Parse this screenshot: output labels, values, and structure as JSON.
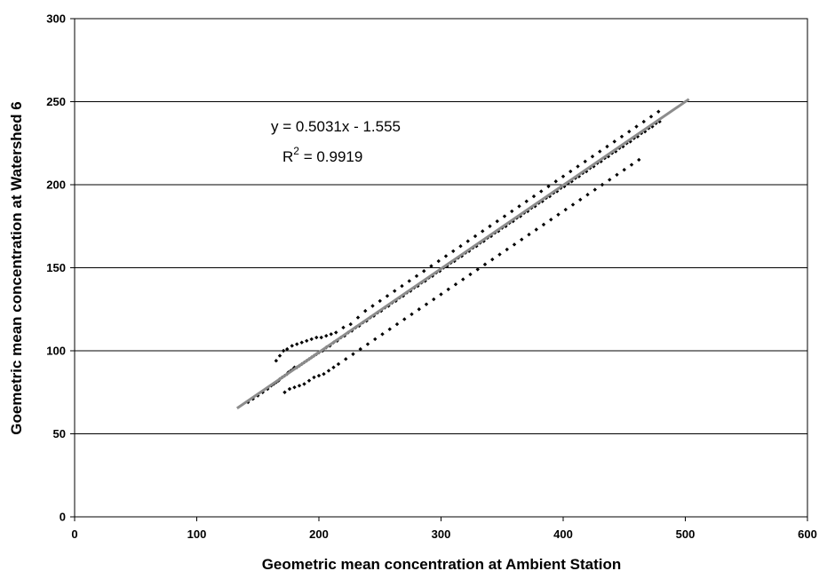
{
  "chart_data": {
    "type": "scatter",
    "xlabel": "Geometric mean concentration at Ambient Station",
    "ylabel": "Goemetric mean concentration at Watershed 6",
    "xlim": [
      0,
      600
    ],
    "ylim": [
      0,
      300
    ],
    "x_ticks": [
      "0",
      "100",
      "200",
      "300",
      "400",
      "500",
      "600"
    ],
    "y_ticks": [
      "0",
      "50",
      "100",
      "150",
      "200",
      "250",
      "300"
    ],
    "grid": {
      "horizontal": true,
      "vertical": false
    },
    "legend": "none",
    "colors": {
      "points": "#000000",
      "trendline": "#8c8c8c",
      "gridlines": "#000000"
    },
    "series": [
      {
        "x": [
          142,
          146,
          150,
          154,
          158,
          161,
          163,
          165,
          167,
          168,
          170,
          172,
          174,
          175,
          177,
          179,
          180,
          182,
          184,
          186,
          188,
          190,
          192,
          194,
          196,
          198,
          200,
          203,
          206,
          209,
          212,
          215,
          218,
          221,
          224,
          227,
          230,
          233,
          236,
          239,
          242,
          245,
          248,
          251,
          254,
          257,
          260,
          263,
          266,
          269,
          272,
          275,
          278,
          281,
          284,
          287,
          290,
          293,
          296,
          299,
          302,
          305,
          308,
          311,
          314,
          317,
          320,
          323,
          326,
          329,
          332,
          335,
          338,
          341,
          344,
          347,
          350,
          353,
          356,
          359,
          362,
          365,
          368,
          371,
          374,
          377,
          380,
          383,
          386,
          389,
          392,
          395,
          398,
          401,
          404,
          407,
          410,
          413,
          416,
          419,
          422,
          425,
          428,
          431,
          434,
          437,
          440,
          443,
          446,
          449,
          452,
          455,
          458,
          461,
          464,
          467,
          470,
          473,
          476,
          479,
          165,
          168,
          171,
          174,
          178,
          182,
          186,
          190,
          194,
          198,
          202,
          206,
          210,
          214,
          220,
          226,
          232,
          238,
          244,
          250,
          256,
          262,
          268,
          274,
          280,
          286,
          292,
          298,
          304,
          310,
          316,
          322,
          328,
          334,
          340,
          346,
          352,
          358,
          364,
          370,
          376,
          382,
          388,
          394,
          400,
          406,
          412,
          418,
          424,
          430,
          436,
          442,
          448,
          454,
          460,
          466,
          472,
          478,
          172,
          176,
          180,
          184,
          188,
          192,
          196,
          200,
          204,
          208,
          212,
          216,
          222,
          228,
          234,
          240,
          246,
          252,
          258,
          264,
          270,
          276,
          282,
          288,
          294,
          300,
          306,
          312,
          318,
          324,
          330,
          336,
          342,
          348,
          354,
          360,
          366,
          372,
          378,
          384,
          390,
          396,
          402,
          408,
          414,
          420,
          426,
          432,
          438,
          444,
          450,
          456,
          462
        ],
        "y": [
          69,
          71,
          73,
          75,
          77,
          79,
          80,
          81,
          82,
          83,
          84,
          85,
          86,
          87,
          88,
          89,
          90,
          90,
          91,
          92,
          93,
          94,
          95,
          96,
          97,
          98,
          99,
          100,
          102,
          103,
          105,
          106,
          108,
          109,
          111,
          112,
          114,
          115,
          117,
          118,
          120,
          121,
          123,
          124,
          126,
          127,
          129,
          130,
          132,
          133,
          135,
          136,
          138,
          139,
          141,
          142,
          144,
          145,
          147,
          148,
          150,
          151,
          153,
          154,
          156,
          157,
          159,
          160,
          162,
          163,
          165,
          166,
          168,
          169,
          171,
          172,
          174,
          175,
          177,
          178,
          180,
          181,
          183,
          184,
          186,
          187,
          189,
          190,
          192,
          193,
          195,
          196,
          198,
          199,
          201,
          202,
          204,
          205,
          207,
          208,
          210,
          211,
          213,
          214,
          216,
          217,
          219,
          220,
          222,
          223,
          225,
          226,
          228,
          229,
          231,
          232,
          234,
          235,
          237,
          238,
          94,
          97,
          100,
          101,
          103,
          104,
          105,
          106,
          107,
          108,
          108,
          109,
          110,
          111,
          114,
          116,
          120,
          124,
          127,
          130,
          133,
          136,
          139,
          142,
          145,
          148,
          151,
          154,
          157,
          160,
          163,
          166,
          169,
          172,
          175,
          178,
          181,
          184,
          187,
          190,
          193,
          196,
          199,
          202,
          205,
          208,
          211,
          214,
          217,
          220,
          223,
          226,
          229,
          232,
          235,
          238,
          241,
          244,
          75,
          77,
          78,
          79,
          80,
          82,
          84,
          85,
          86,
          88,
          90,
          92,
          95,
          98,
          101,
          104,
          107,
          110,
          113,
          116,
          119,
          122,
          125,
          128,
          131,
          134,
          137,
          140,
          143,
          146,
          149,
          152,
          155,
          158,
          161,
          164,
          167,
          170,
          173,
          176,
          179,
          182,
          185,
          188,
          191,
          194,
          197,
          200,
          203,
          206,
          209,
          212,
          215
        ]
      }
    ],
    "trendline": {
      "slope": 0.5031,
      "intercept": -1.555,
      "x_start": 133,
      "x_end": 503
    },
    "annotations": {
      "equation": "y = 0.5031x - 1.555",
      "r2_prefix": "R",
      "r2_sup": "2",
      "r2_suffix": " = 0.9919"
    }
  }
}
